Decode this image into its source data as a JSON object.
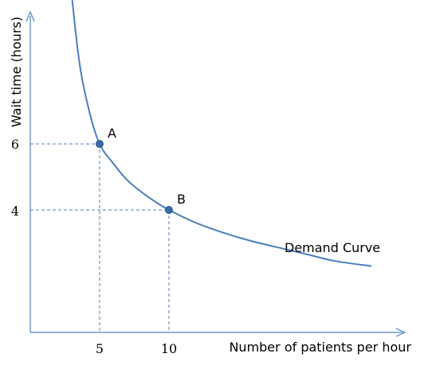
{
  "chart_data": {
    "type": "line",
    "xlabel": "Number of patients per hour",
    "ylabel": "Wait time (hours)",
    "x_ticks": [
      "5",
      "10"
    ],
    "y_ticks": [
      "6",
      "4"
    ],
    "series": [
      {
        "name": "Demand Curve",
        "x": [
          2.75,
          3.5,
          4.25,
          5,
          6,
          7,
          8,
          9,
          10,
          12,
          14,
          16,
          18,
          20,
          22,
          24.6
        ],
        "y": [
          11.5,
          8.6,
          7.0,
          6.0,
          5.4,
          4.9,
          4.55,
          4.25,
          4.0,
          3.6,
          3.3,
          3.05,
          2.85,
          2.65,
          2.45,
          2.3
        ]
      }
    ],
    "points": [
      {
        "label": "A",
        "x": 5,
        "y": 6
      },
      {
        "label": "B",
        "x": 10,
        "y": 4
      }
    ],
    "grid": false,
    "legend": "none"
  }
}
